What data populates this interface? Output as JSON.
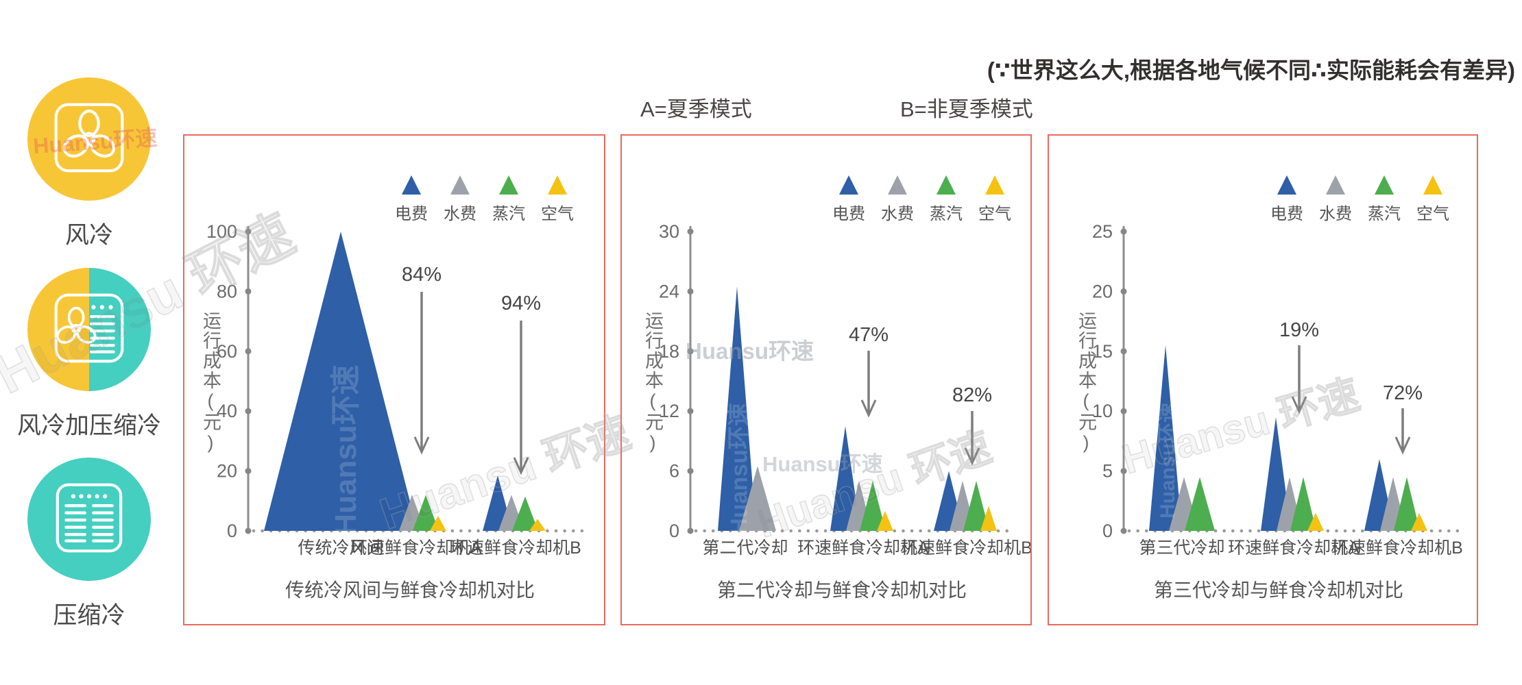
{
  "top_annotation": "(∵世界这么大,根据各地气候不同∴实际能耗会有差异)",
  "mode_labels": {
    "summer": "A=夏季模式",
    "non_summer": "B=非夏季模式"
  },
  "watermark_text": "Huansu 环速",
  "watermark_compact": "Huansu环速",
  "panel_border_color": "#E9695E",
  "sidebar": {
    "items": [
      {
        "label": "风冷",
        "icon": "fan-icon",
        "circle_colors": [
          "#F7C637"
        ]
      },
      {
        "label": "风冷加压缩冷",
        "icon": "fan-plus-compressor-icon",
        "circle_colors": [
          "#F7C637",
          "#44CFC0"
        ]
      },
      {
        "label": "压缩冷",
        "icon": "compressor-icon",
        "circle_colors": [
          "#44CFC0"
        ]
      }
    ]
  },
  "legend": [
    {
      "label": "电费",
      "color": "#2E5FA7"
    },
    {
      "label": "水费",
      "color": "#9DA2AA"
    },
    {
      "label": "蒸汽",
      "color": "#4CAE4E"
    },
    {
      "label": "空气",
      "color": "#F5C212"
    }
  ],
  "chart_data": [
    {
      "type": "bar",
      "subtype": "triangle-bar",
      "title": "传统冷风间与鲜食冷却机对比",
      "ylabel": "运行成本(元)",
      "ylim": [
        0,
        100
      ],
      "yticks": [
        0,
        20,
        40,
        60,
        80,
        100
      ],
      "grid": false,
      "legend_position": "top-right",
      "categories": [
        "传统冷风间",
        "环速鲜食冷却机A",
        "环速鲜食冷却机B"
      ],
      "groups": [
        {
          "category": "传统冷风间",
          "bars": [
            {
              "series": "电费",
              "value": 100
            }
          ]
        },
        {
          "category": "环速鲜食冷却机A",
          "reduction": "84%",
          "bars": [
            {
              "series": "电费",
              "value": 24
            },
            {
              "series": "水费",
              "value": 12
            },
            {
              "series": "蒸汽",
              "value": 12
            },
            {
              "series": "空气",
              "value": 5
            }
          ]
        },
        {
          "category": "环速鲜食冷却机B",
          "reduction": "94%",
          "bars": [
            {
              "series": "电费",
              "value": 18.5
            },
            {
              "series": "水费",
              "value": 12
            },
            {
              "series": "蒸汽",
              "value": 11.5
            },
            {
              "series": "空气",
              "value": 4
            }
          ]
        }
      ]
    },
    {
      "type": "bar",
      "subtype": "triangle-bar",
      "title": "第二代冷却与鲜食冷却机对比",
      "ylabel": "运行成本(元)",
      "ylim": [
        0,
        30
      ],
      "yticks": [
        0,
        6,
        12,
        18,
        24,
        30
      ],
      "grid": false,
      "legend_position": "top-right",
      "categories": [
        "第二代冷却",
        "环速鲜食冷却机A",
        "环速鲜食冷却机B"
      ],
      "groups": [
        {
          "category": "第二代冷却",
          "bars": [
            {
              "series": "电费",
              "value": 24.5
            },
            {
              "series": "水费",
              "value": 6.5
            }
          ]
        },
        {
          "category": "环速鲜食冷却机A",
          "reduction": "47%",
          "bars": [
            {
              "series": "电费",
              "value": 10.5
            },
            {
              "series": "水费",
              "value": 5
            },
            {
              "series": "蒸汽",
              "value": 5
            },
            {
              "series": "空气",
              "value": 2
            }
          ]
        },
        {
          "category": "环速鲜食冷却机B",
          "reduction": "82%",
          "bars": [
            {
              "series": "电费",
              "value": 6
            },
            {
              "series": "水费",
              "value": 5
            },
            {
              "series": "蒸汽",
              "value": 5
            },
            {
              "series": "空气",
              "value": 2.5
            }
          ]
        }
      ]
    },
    {
      "type": "bar",
      "subtype": "triangle-bar",
      "title": "第三代冷却与鲜食冷却机对比",
      "ylabel": "运行成本(元)",
      "ylim": [
        0,
        25
      ],
      "yticks": [
        0,
        5,
        10,
        15,
        20,
        25
      ],
      "grid": false,
      "legend_position": "top-right",
      "categories": [
        "第三代冷却",
        "环速鲜食冷却机A",
        "环速鲜食冷却机B"
      ],
      "groups": [
        {
          "category": "第三代冷却",
          "bars": [
            {
              "series": "电费",
              "value": 15.5
            },
            {
              "series": "水费",
              "value": 4.5
            },
            {
              "series": "蒸汽",
              "value": 4.5
            }
          ]
        },
        {
          "category": "环速鲜食冷却机A",
          "reduction": "19%",
          "bars": [
            {
              "series": "电费",
              "value": 9.5
            },
            {
              "series": "水费",
              "value": 4.5
            },
            {
              "series": "蒸汽",
              "value": 4.5
            },
            {
              "series": "空气",
              "value": 1.5
            }
          ]
        },
        {
          "category": "环速鲜食冷却机B",
          "reduction": "72%",
          "bars": [
            {
              "series": "电费",
              "value": 6
            },
            {
              "series": "水费",
              "value": 4.5
            },
            {
              "series": "蒸汽",
              "value": 4.5
            },
            {
              "series": "空气",
              "value": 1.5
            }
          ]
        }
      ]
    }
  ]
}
